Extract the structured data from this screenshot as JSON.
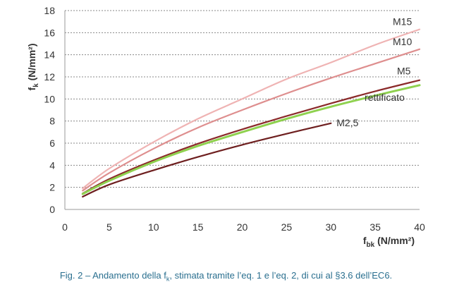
{
  "chart_data": {
    "type": "line",
    "xlabel": {
      "main": "f",
      "sub": "bk",
      "unit": " (N/mm²)"
    },
    "ylabel": {
      "main": "f",
      "sub": "k",
      "unit": " (N/mm²)"
    },
    "xlim": [
      0,
      40
    ],
    "ylim": [
      0,
      18
    ],
    "x_ticks": [
      0,
      5,
      10,
      15,
      20,
      25,
      30,
      35,
      40
    ],
    "y_ticks": [
      0,
      2,
      4,
      6,
      8,
      10,
      12,
      14,
      16,
      18
    ],
    "grid": "horizontal-dashed",
    "series": [
      {
        "name": "M15",
        "color": "#efb3b3",
        "x": [
          2,
          5,
          10,
          15,
          20,
          25,
          30,
          35,
          40
        ],
        "y": [
          1.9,
          3.7,
          6.1,
          8.2,
          10.0,
          11.8,
          13.3,
          14.9,
          16.3
        ]
      },
      {
        "name": "M10",
        "color": "#de8e8e",
        "x": [
          2,
          5,
          10,
          15,
          20,
          25,
          30,
          35,
          40
        ],
        "y": [
          1.7,
          3.3,
          5.5,
          7.4,
          9.0,
          10.5,
          11.9,
          13.2,
          14.5
        ]
      },
      {
        "name": "M5",
        "color": "#8b2a2a",
        "x": [
          2,
          5,
          10,
          15,
          20,
          25,
          30,
          35,
          40
        ],
        "y": [
          1.45,
          2.75,
          4.45,
          5.95,
          7.25,
          8.45,
          9.6,
          10.7,
          11.7
        ]
      },
      {
        "name": "rettificato",
        "color": "#8fd14f",
        "x": [
          2,
          5,
          10,
          15,
          20,
          25,
          30,
          35,
          40
        ],
        "y": [
          1.4,
          2.6,
          4.3,
          5.75,
          7.0,
          8.2,
          9.3,
          10.3,
          11.25
        ]
      },
      {
        "name": "M2,5",
        "color": "#6e1f1f",
        "x": [
          2,
          5,
          10,
          15,
          20,
          25,
          30
        ],
        "y": [
          1.15,
          2.25,
          3.55,
          4.75,
          5.85,
          6.85,
          7.8
        ]
      }
    ]
  },
  "caption": {
    "prefix": "Fig. 2 – Andamento della f",
    "sub": "k",
    "suffix": ", stimata tramite l’eq. 1 e l’eq. 2, di cui al §3.6 dell’EC6."
  }
}
